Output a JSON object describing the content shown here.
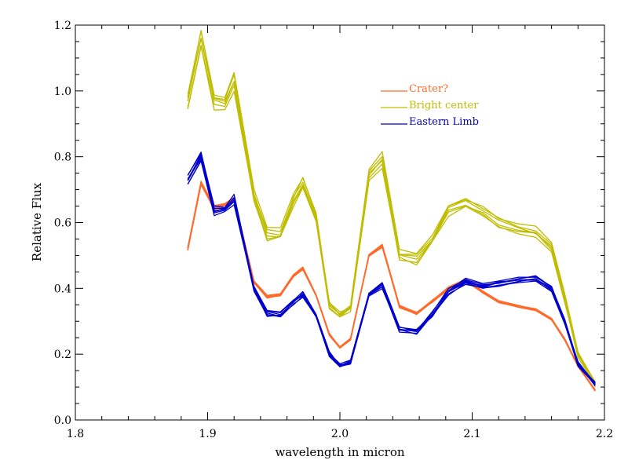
{
  "chart_data": {
    "type": "line",
    "xlabel": "wavelength in micron",
    "ylabel": "Relative Flux",
    "xlim": [
      1.8,
      2.2
    ],
    "ylim": [
      0.0,
      1.2
    ],
    "x_ticks": [
      "1.8",
      "1.9",
      "2.0",
      "2.1",
      "2.2"
    ],
    "y_ticks": [
      "0.0",
      "0.2",
      "0.4",
      "0.6",
      "0.8",
      "1.0",
      "1.2"
    ],
    "grid": false,
    "legend_placement": "upper-middle",
    "legend": [
      {
        "label": "Crater?",
        "color": "#ff6a2a"
      },
      {
        "label": "Bright center",
        "color": "#bfbd00"
      },
      {
        "label": "Eastern Limb",
        "color": "#0000cc"
      }
    ],
    "x": [
      1.885,
      1.895,
      1.905,
      1.913,
      1.92,
      1.935,
      1.945,
      1.955,
      1.965,
      1.972,
      1.982,
      1.992,
      2.0,
      2.008,
      2.022,
      2.032,
      2.045,
      2.058,
      2.07,
      2.082,
      2.095,
      2.108,
      2.12,
      2.135,
      2.148,
      2.16,
      2.17,
      2.18,
      2.193
    ],
    "series": [
      {
        "name": "Crater?",
        "color": "#ff6a2a",
        "copies": 8,
        "spread": 0.006,
        "values": [
          0.52,
          0.72,
          0.645,
          0.655,
          0.67,
          0.42,
          0.375,
          0.38,
          0.44,
          0.46,
          0.38,
          0.26,
          0.22,
          0.245,
          0.5,
          0.53,
          0.345,
          0.325,
          0.36,
          0.4,
          0.425,
          0.39,
          0.36,
          0.345,
          0.335,
          0.305,
          0.245,
          0.165,
          0.09
        ]
      },
      {
        "name": "Bright center",
        "color": "#bfbd00",
        "copies": 6,
        "spread": 0.02,
        "values": [
          0.97,
          1.16,
          0.97,
          0.96,
          1.03,
          0.68,
          0.565,
          0.565,
          0.67,
          0.72,
          0.62,
          0.35,
          0.32,
          0.34,
          0.74,
          0.79,
          0.5,
          0.49,
          0.55,
          0.64,
          0.66,
          0.64,
          0.6,
          0.58,
          0.57,
          0.52,
          0.37,
          0.2,
          0.11
        ]
      },
      {
        "name": "Eastern Limb",
        "color": "#0000cc",
        "copies": 8,
        "spread": 0.014,
        "values": [
          0.73,
          0.8,
          0.635,
          0.64,
          0.67,
          0.4,
          0.325,
          0.32,
          0.36,
          0.38,
          0.32,
          0.2,
          0.165,
          0.175,
          0.38,
          0.41,
          0.275,
          0.27,
          0.32,
          0.39,
          0.42,
          0.41,
          0.415,
          0.425,
          0.43,
          0.395,
          0.3,
          0.17,
          0.11
        ]
      }
    ]
  }
}
